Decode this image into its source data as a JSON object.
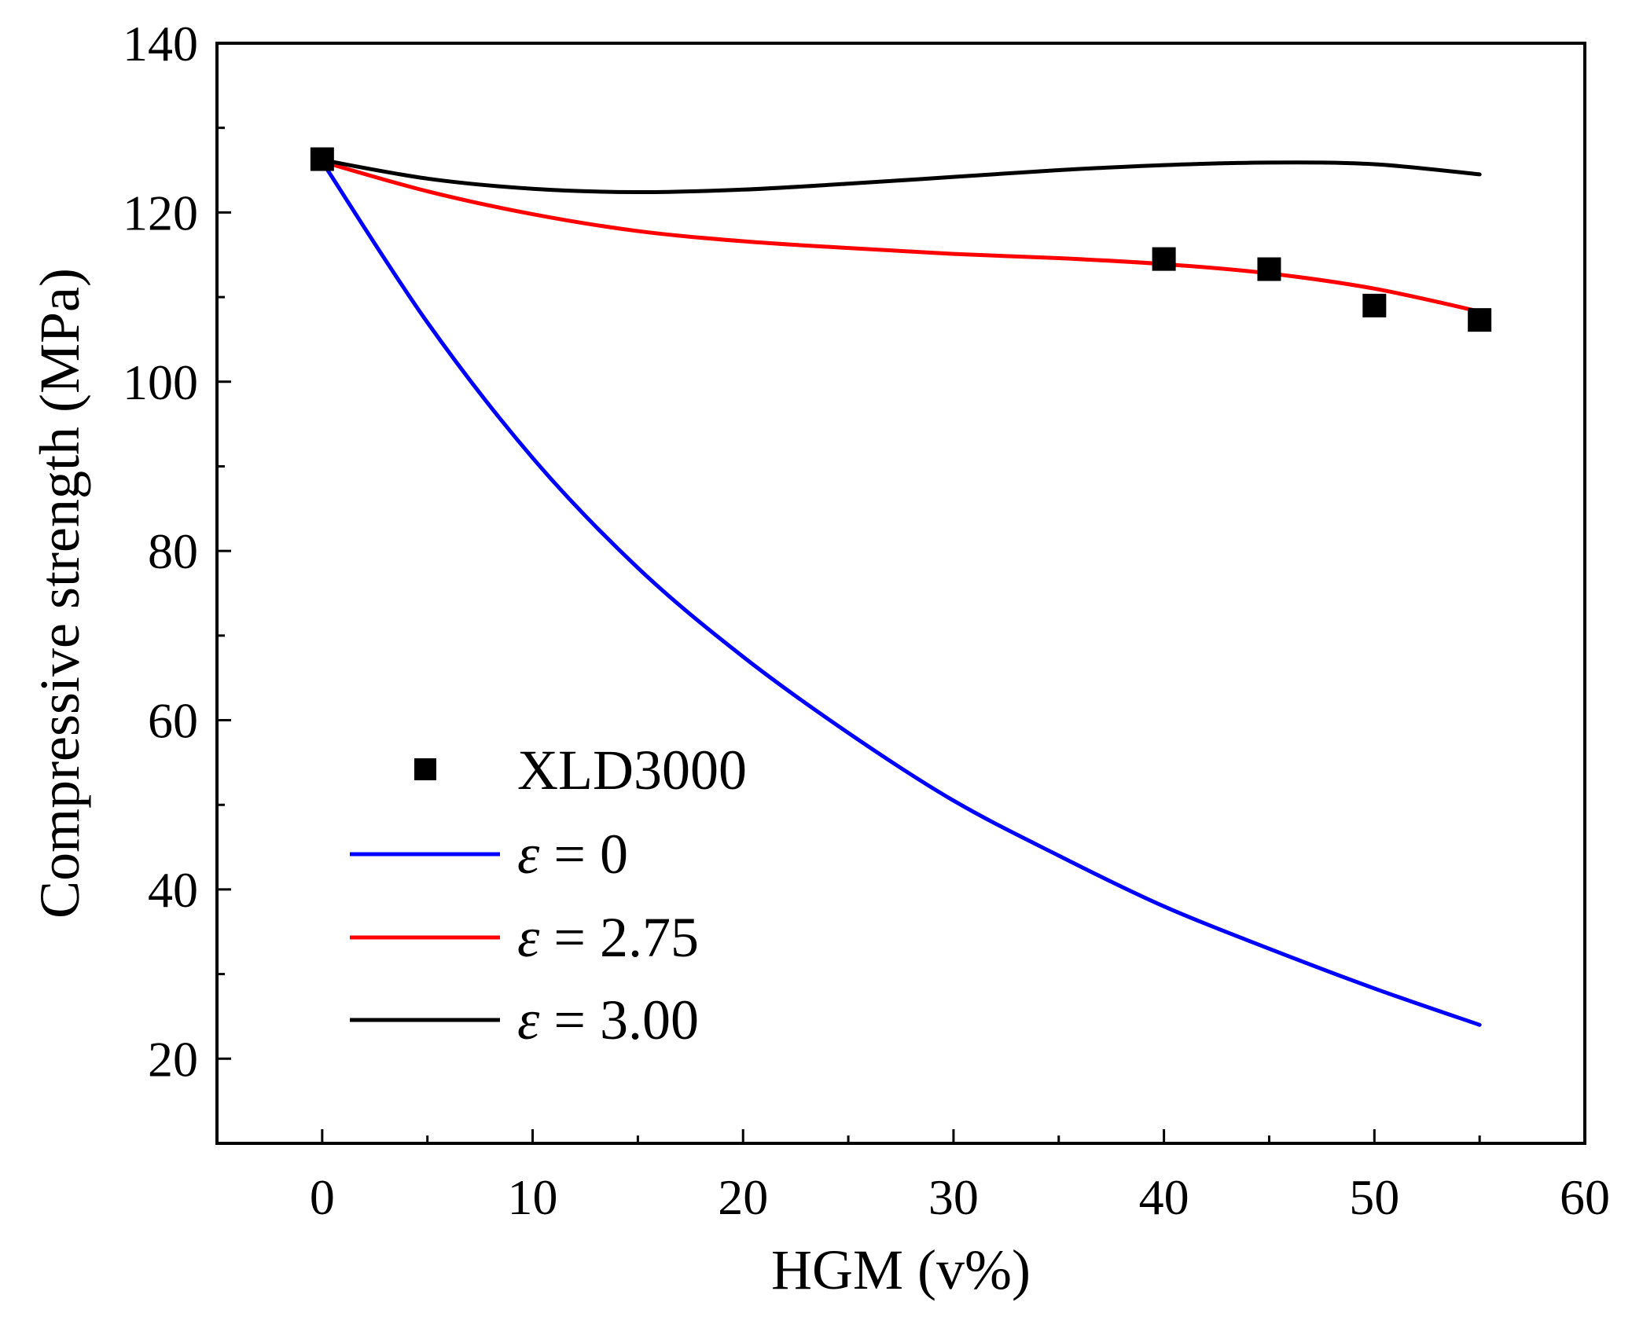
{
  "chart_data": {
    "type": "line",
    "title": "",
    "xlabel": "HGM (v%)",
    "ylabel": "Compressive strength (MPa)",
    "xlim": [
      -5,
      60
    ],
    "ylim": [
      10,
      140
    ],
    "xticks": [
      0,
      10,
      20,
      30,
      40,
      50,
      60
    ],
    "yticks": [
      20,
      40,
      60,
      80,
      100,
      120,
      140
    ],
    "grid": false,
    "legend_position": "bottom-left",
    "scatter": {
      "name": "XLD3000",
      "color": "#000000",
      "x": [
        0,
        40,
        45,
        50,
        55
      ],
      "y": [
        126.3,
        114.5,
        113.3,
        109.0,
        107.3
      ]
    },
    "series": [
      {
        "name": "ε = 0",
        "symbol": "ε",
        "value_text": "= 0",
        "color": "#0000ff",
        "x": [
          0,
          5,
          10,
          15,
          20,
          25,
          30,
          35,
          40,
          45,
          50,
          55
        ],
        "y": [
          126.0,
          107.0,
          91.0,
          78.0,
          67.5,
          58.5,
          50.5,
          44.0,
          38.0,
          33.0,
          28.3,
          24.0
        ]
      },
      {
        "name": "ε = 2.75",
        "symbol": "ε",
        "value_text": "= 2.75",
        "color": "#ff0000",
        "x": [
          0,
          5,
          10,
          15,
          20,
          25,
          30,
          35,
          40,
          45,
          50,
          55
        ],
        "y": [
          126.0,
          122.5,
          119.8,
          117.8,
          116.6,
          115.8,
          115.1,
          114.6,
          113.9,
          112.8,
          111.0,
          108.3
        ]
      },
      {
        "name": "ε = 3.00",
        "symbol": "ε",
        "value_text": "= 3.00",
        "color": "#000000",
        "x": [
          0,
          5,
          10,
          15,
          20,
          25,
          30,
          35,
          40,
          45,
          50,
          55
        ],
        "y": [
          126.2,
          124.0,
          122.8,
          122.4,
          122.7,
          123.4,
          124.2,
          125.0,
          125.6,
          125.9,
          125.7,
          124.5
        ]
      }
    ]
  }
}
